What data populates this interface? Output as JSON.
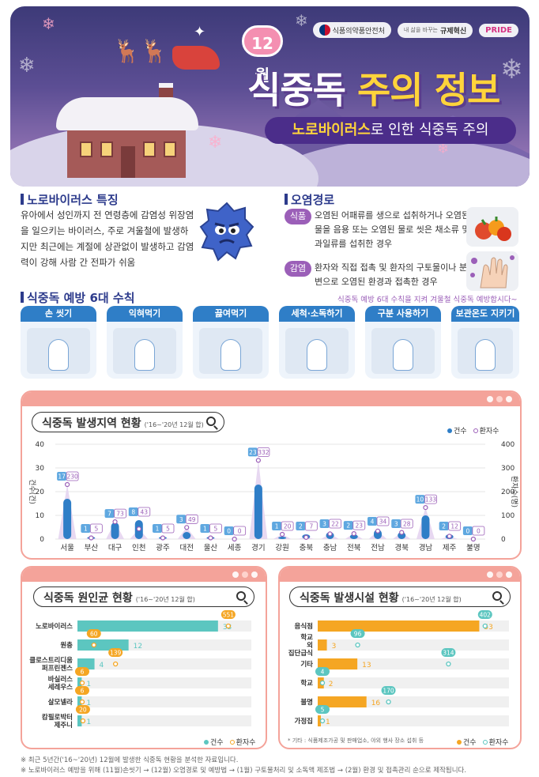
{
  "header": {
    "month": "12월",
    "title_part1": "식중독",
    "title_part2": "주의 정보",
    "subtitle_highlight": "노로바이러스",
    "subtitle_rest": "로 인한 식중독 주의",
    "logos": [
      "식품의약품안전처",
      "규제혁신",
      "PRIDE"
    ],
    "logo_small": "내 삶을 바꾸는"
  },
  "features": {
    "title": "노로바이러스 특징",
    "text": "유아에서 성인까지 전 연령층에 감염성 위장염을 일으키는 바이러스, 주로 겨울철에 발생하지만 최근에는 계절에 상관없이 발생하고 감염력이 강해 사람 간 전파가 쉬움"
  },
  "routes": {
    "title": "오염경로",
    "items": [
      {
        "tag": "식품",
        "text": "오염된 어패류를 생으로 섭취하거나 오염된 물을 음용 또는 오염된 물로 씻은 채소류 및 과일류를 섭취한 경우"
      },
      {
        "tag": "감염",
        "text": "환자와 직접 접촉 및 환자의 구토물이나 분변으로 오염된 환경과 접촉한 경우"
      }
    ]
  },
  "rules": {
    "title": "식중독 예방 6대 수칙",
    "note": "식중독 예방 6대 수칙을 지켜 겨울철 식중독 예방합시다~",
    "items": [
      "손 씻기",
      "익혀먹기",
      "끓여먹기",
      "세척·소독하기",
      "구분 사용하기",
      "보관온도 지키기"
    ]
  },
  "region_chart": {
    "title": "식중독 발생지역 현황",
    "period": "('16~'20년 12월 합)",
    "legend": [
      "건수",
      "환자수"
    ],
    "y_left_label": "건수(건)",
    "y_right_label": "환자수(명)",
    "y_left_ticks": [
      "0",
      "10",
      "20",
      "30",
      "40"
    ],
    "y_right_ticks": [
      "0",
      "100",
      "200",
      "300",
      "400"
    ]
  },
  "cause_chart": {
    "title": "식중독 원인균 현황",
    "period": "('16~'20년 12월 합)",
    "legend": [
      "건수",
      "환자수"
    ]
  },
  "facility_chart": {
    "title": "식중독 발생시설 현황",
    "period": "('16~'20년 12월 합)",
    "legend": [
      "건수",
      "환자수"
    ],
    "note": "* 기타 : 식품제조가공 및 판매업소, 야외 행사 장소 섭취 등"
  },
  "footnotes": [
    "※ 최근 5년간('16~'20년) 12월에 발생한 식중독 현황을 분석한 자료입니다.",
    "※ 노로바이러스 예방을 위해 (11월)손씻기 → (12월) 오염경로 및 예방법 → (1월) 구토물처리 및 소독액 제조법 → (2월) 환경 및 접촉관리 순으로 제작됩니다."
  ],
  "colors": {
    "teal": "#5cc6c0",
    "orange": "#f5a623",
    "purple": "#9b5fb8",
    "blue": "#2f7ec7",
    "pink": "#f4a39a"
  },
  "chart_data": [
    {
      "type": "bar",
      "title": "식중독 발생지역 현황",
      "subtitle": "('16~'20년 12월 합)",
      "categories": [
        "서울",
        "부산",
        "대구",
        "인천",
        "광주",
        "대전",
        "울산",
        "세종",
        "경기",
        "강원",
        "충북",
        "충남",
        "전북",
        "전남",
        "경북",
        "경남",
        "제주",
        "불명"
      ],
      "series": [
        {
          "name": "건수",
          "values": [
            17,
            1,
            7,
            8,
            1,
            3,
            1,
            0,
            23,
            1,
            2,
            3,
            2,
            4,
            3,
            10,
            2,
            0
          ]
        },
        {
          "name": "환자수",
          "values": [
            230,
            5,
            73,
            43,
            5,
            49,
            5,
            0,
            332,
            20,
            7,
            22,
            23,
            34,
            28,
            133,
            12,
            0
          ]
        }
      ],
      "ylabel": "건수(건)",
      "y2label": "환자수(명)",
      "ylim": [
        0,
        40
      ],
      "y2lim": [
        0,
        400
      ]
    },
    {
      "type": "bar",
      "title": "식중독 원인균 현황",
      "subtitle": "('16~'20년 12월 합)",
      "categories": [
        "노로바이러스",
        "원충",
        "클로스트리디움 퍼프린젠스",
        "바실러스 세레우스",
        "살모넬라",
        "캄필로박터 제주니"
      ],
      "series": [
        {
          "name": "건수",
          "values": [
            33,
            12,
            4,
            1,
            1,
            1
          ]
        },
        {
          "name": "환자수",
          "values": [
            551,
            60,
            139,
            6,
            6,
            20
          ]
        }
      ]
    },
    {
      "type": "bar",
      "title": "식중독 발생시설 현황",
      "subtitle": "('16~'20년 12월 합)",
      "categories": [
        "음식점",
        "학교 외 집단급식",
        "기타",
        "학교",
        "불명",
        "가정집"
      ],
      "series": [
        {
          "name": "건수",
          "values": [
            53,
            3,
            13,
            2,
            16,
            1
          ]
        },
        {
          "name": "환자수",
          "values": [
            402,
            96,
            314,
            4,
            170,
            5
          ]
        }
      ]
    }
  ]
}
